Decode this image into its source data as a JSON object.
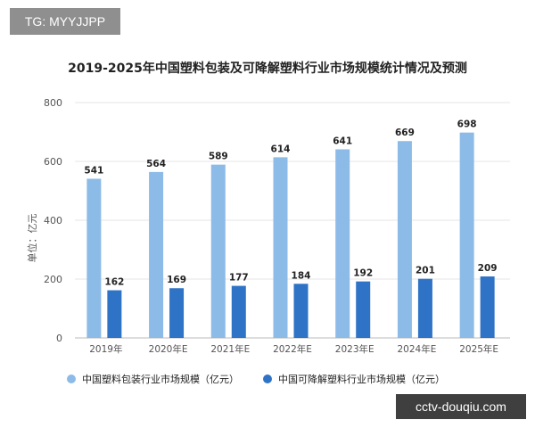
{
  "top_tag": "TG: MYYJJPP",
  "bottom_tag": "cctv-douqiu.com",
  "colors": {
    "series1": "#8dbbe8",
    "series2": "#2f73c6",
    "grid": "#e6e6e6",
    "axis_text": "#555555",
    "label_text": "#222222"
  },
  "chart_data": {
    "type": "bar",
    "title": "2019-2025年中国塑料包装及可降解塑料行业市场规模统计情况及预测",
    "ylabel": "单位：亿元",
    "xlabel": "",
    "ylim": [
      0,
      800
    ],
    "yticks": [
      0,
      200,
      400,
      600,
      800
    ],
    "grid": true,
    "legend_position": "bottom",
    "categories": [
      "2019年",
      "2020年E",
      "2021年E",
      "2022年E",
      "2023年E",
      "2024年E",
      "2025年E"
    ],
    "series": [
      {
        "name": "中国塑料包装行业市场规模（亿元）",
        "values": [
          541,
          564,
          589,
          614,
          641,
          669,
          698
        ]
      },
      {
        "name": "中国可降解塑料行业市场规模（亿元）",
        "values": [
          162,
          169,
          177,
          184,
          192,
          201,
          209
        ]
      }
    ]
  }
}
